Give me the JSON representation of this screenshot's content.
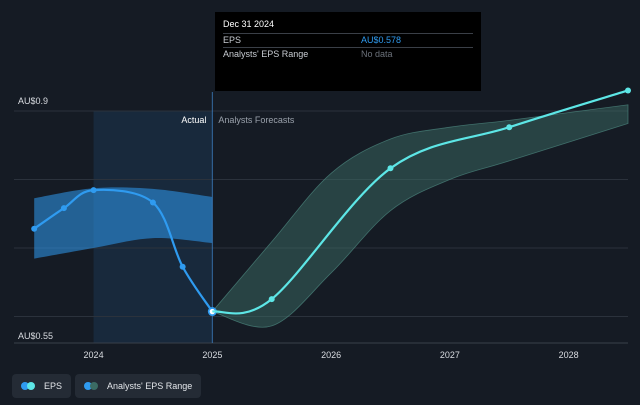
{
  "chart_data": {
    "type": "line",
    "x_domain": [
      2023.33,
      2028.5
    ],
    "y_domain": [
      0.55,
      0.9
    ],
    "y_axis_labels": [
      {
        "value": 0.9,
        "text": "AU$0.9"
      },
      {
        "value": 0.55,
        "text": "AU$0.55"
      }
    ],
    "x_ticks": [
      {
        "value": 2024,
        "text": "2024"
      },
      {
        "value": 2025,
        "text": "2025"
      },
      {
        "value": 2026,
        "text": "2026"
      },
      {
        "value": 2027,
        "text": "2027"
      },
      {
        "value": 2028,
        "text": "2028"
      }
    ],
    "gridlines": [
      0.9,
      0.79,
      0.68,
      0.57
    ],
    "divider_x": 2025,
    "highlight_start_x": 2024,
    "section_labels": {
      "actual": "Actual",
      "forecast": "Analysts Forecasts"
    },
    "series": [
      {
        "name": "EPS",
        "color": "#2f9bf0",
        "points": [
          {
            "x": 2023.5,
            "y": 0.711
          },
          {
            "x": 2023.75,
            "y": 0.744
          },
          {
            "x": 2024.0,
            "y": 0.773
          },
          {
            "x": 2024.5,
            "y": 0.753
          },
          {
            "x": 2024.75,
            "y": 0.65
          },
          {
            "x": 2025.0,
            "y": 0.578
          }
        ]
      },
      {
        "name": "EPS forecast",
        "color": "#5de6e6",
        "points": [
          {
            "x": 2025.0,
            "y": 0.578
          },
          {
            "x": 2025.5,
            "y": 0.598
          },
          {
            "x": 2026.5,
            "y": 0.808
          },
          {
            "x": 2027.5,
            "y": 0.874
          },
          {
            "x": 2028.5,
            "y": 0.933
          }
        ]
      }
    ],
    "bands": [
      {
        "name": "Analysts' EPS Range (actual)",
        "color": "#2f9bf0",
        "points": [
          {
            "x": 2023.5,
            "low": 0.663,
            "high": 0.76
          },
          {
            "x": 2024.0,
            "low": 0.68,
            "high": 0.776
          },
          {
            "x": 2024.5,
            "low": 0.696,
            "high": 0.775
          },
          {
            "x": 2025.0,
            "low": 0.688,
            "high": 0.762
          }
        ]
      },
      {
        "name": "Analysts' EPS Range (forecast)",
        "color": "#3b6b64",
        "points": [
          {
            "x": 2025.0,
            "low": 0.578,
            "high": 0.578
          },
          {
            "x": 2025.5,
            "low": 0.555,
            "high": 0.69
          },
          {
            "x": 2026.0,
            "low": 0.64,
            "high": 0.8
          },
          {
            "x": 2026.5,
            "low": 0.74,
            "high": 0.855
          },
          {
            "x": 2027.0,
            "low": 0.79,
            "high": 0.874
          },
          {
            "x": 2027.5,
            "low": 0.82,
            "high": 0.885
          },
          {
            "x": 2028.5,
            "low": 0.88,
            "high": 0.91
          }
        ]
      }
    ],
    "tooltip": {
      "title": "Dec 31 2024",
      "rows": [
        {
          "label": "EPS",
          "value": "AU$0.578"
        },
        {
          "label": "Analysts' EPS Range",
          "value": "No data"
        }
      ]
    },
    "legend": [
      {
        "label": "EPS",
        "colors": [
          "#2f9bf0",
          "#5de6e6"
        ]
      },
      {
        "label": "Analysts' EPS Range",
        "colors": [
          "#2f9bf0",
          "#3b6b64"
        ]
      }
    ]
  }
}
